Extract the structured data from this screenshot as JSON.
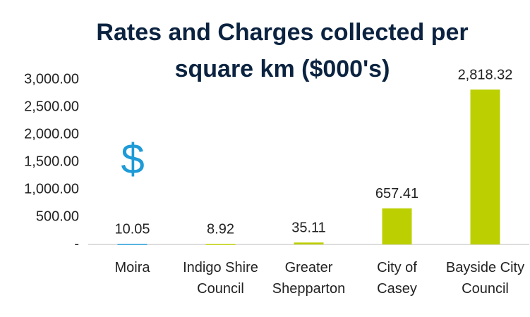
{
  "chart_data": {
    "type": "bar",
    "title": "Rates and Charges collected per square km ($000's)",
    "annotation": "$",
    "categories": [
      "Moira",
      "Indigo Shire Council",
      "Greater Shepparton",
      "City of Casey",
      "Bayside City Council"
    ],
    "values": [
      10.05,
      8.92,
      35.11,
      657.41,
      2818.32
    ],
    "value_labels": [
      "10.05",
      "8.92",
      "35.11",
      "657.41",
      "2,818.32"
    ],
    "colors": [
      "#1f9bd7",
      "#bccf00",
      "#bccf00",
      "#bccf00",
      "#bccf00"
    ],
    "ylim": [
      0,
      3000
    ],
    "yticks": [
      {
        "value": 0,
        "label": "-"
      },
      {
        "value": 500,
        "label": "500.00"
      },
      {
        "value": 1000,
        "label": "1,000.00"
      },
      {
        "value": 1500,
        "label": "1,500.00"
      },
      {
        "value": 2000,
        "label": "2,000.00"
      },
      {
        "value": 2500,
        "label": "2,500.00"
      },
      {
        "value": 3000,
        "label": "3,000.00"
      }
    ]
  }
}
